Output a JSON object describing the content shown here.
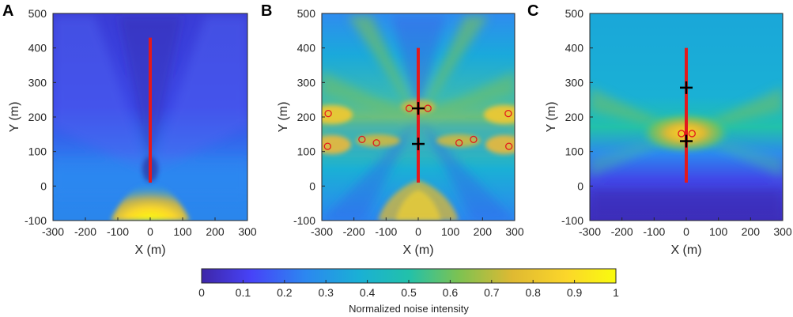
{
  "chart_data": [
    {
      "type": "heatmap",
      "panel_label": "A",
      "xlabel": "X (m)",
      "ylabel": "Y (m)",
      "xlim": [
        -300,
        300
      ],
      "ylim": [
        -100,
        500
      ],
      "xticks": [
        "-300",
        "-200",
        "-100",
        "0",
        "100",
        "200",
        "300"
      ],
      "yticks": [
        "500",
        "400",
        "300",
        "200",
        "100",
        "0",
        "-100"
      ],
      "array_line": {
        "x": 0,
        "y_start": 10,
        "y_end": 430
      },
      "crosses": [],
      "circles": []
    },
    {
      "type": "heatmap",
      "panel_label": "B",
      "xlabel": "X (m)",
      "ylabel": "Y (m)",
      "xlim": [
        -300,
        300
      ],
      "ylim": [
        -100,
        500
      ],
      "xticks": [
        "-300",
        "-200",
        "-100",
        "0",
        "100",
        "200",
        "300"
      ],
      "yticks": [
        "500",
        "400",
        "300",
        "200",
        "100",
        "0",
        "-100"
      ],
      "array_line": {
        "x": 0,
        "y_start": 10,
        "y_end": 400
      },
      "crosses": [
        {
          "x": 0,
          "y": 225
        },
        {
          "x": 0,
          "y": 122
        }
      ],
      "circles": [
        {
          "x": -280,
          "y": 210
        },
        {
          "x": -282,
          "y": 115
        },
        {
          "x": -175,
          "y": 135
        },
        {
          "x": -130,
          "y": 125
        },
        {
          "x": -28,
          "y": 225
        },
        {
          "x": 30,
          "y": 225
        },
        {
          "x": 127,
          "y": 125
        },
        {
          "x": 172,
          "y": 135
        },
        {
          "x": 280,
          "y": 210
        },
        {
          "x": 282,
          "y": 115
        }
      ]
    },
    {
      "type": "heatmap",
      "panel_label": "C",
      "xlabel": "X (m)",
      "ylabel": "Y (m)",
      "xlim": [
        -300,
        300
      ],
      "ylim": [
        -100,
        500
      ],
      "xticks": [
        "-300",
        "-200",
        "-100",
        "0",
        "100",
        "200",
        "300"
      ],
      "yticks": [
        "500",
        "400",
        "300",
        "200",
        "100",
        "0",
        "-100"
      ],
      "array_line": {
        "x": 0,
        "y_start": 10,
        "y_end": 400
      },
      "crosses": [
        {
          "x": 0,
          "y": 285
        },
        {
          "x": 0,
          "y": 130
        }
      ],
      "circles": [
        {
          "x": -15,
          "y": 152
        },
        {
          "x": 18,
          "y": 152
        }
      ]
    }
  ],
  "colorbar": {
    "title": "Normalized noise intensity",
    "range": [
      0,
      1
    ],
    "ticks": [
      "0",
      "0.1",
      "0.2",
      "0.3",
      "0.4",
      "0.5",
      "0.6",
      "0.7",
      "0.8",
      "0.9",
      "1"
    ]
  },
  "colors": {
    "array_line": "#e3191c",
    "marker_cross": "#000000",
    "marker_circle": "#e3191c",
    "parula": [
      "#3e26a8",
      "#4743f8",
      "#2c87f0",
      "#1ab0d5",
      "#22c1aa",
      "#7cc252",
      "#dfb932",
      "#fbd62a",
      "#f9fb0e"
    ]
  }
}
